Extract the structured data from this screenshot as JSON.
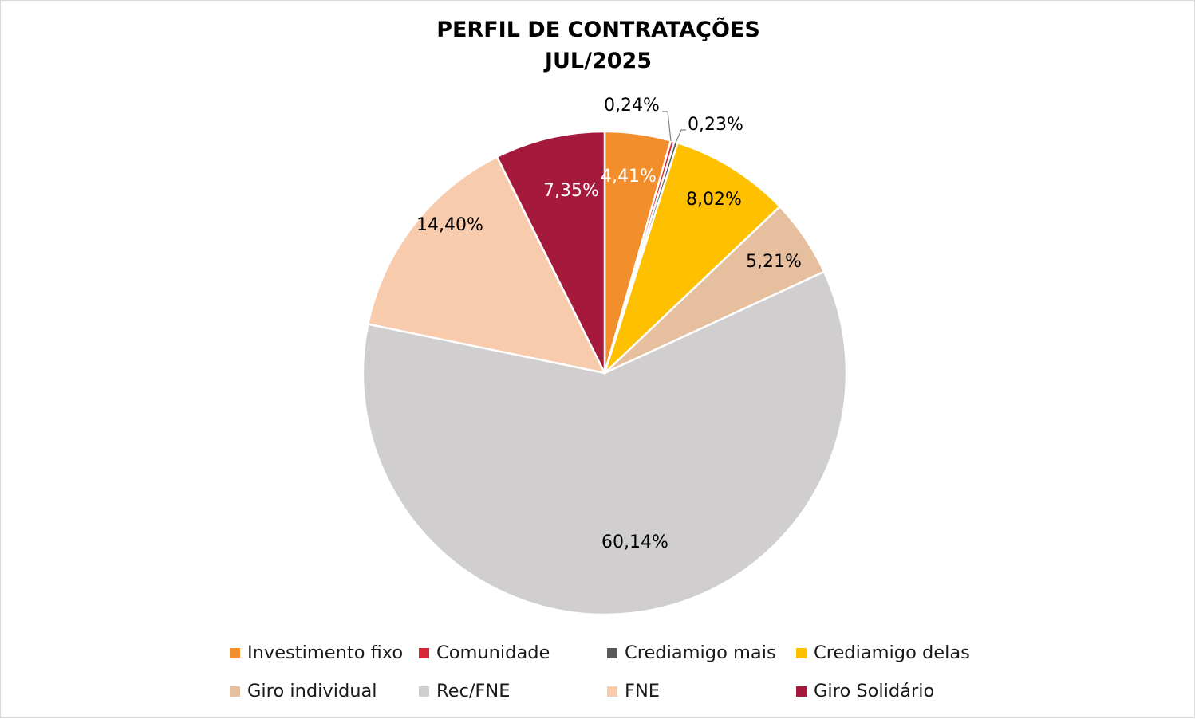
{
  "chart_data": {
    "type": "pie",
    "title": "PERFIL DE CONTRATAÇÕES",
    "subtitle": "JUL/2025",
    "legend_position": "bottom",
    "slices": [
      {
        "label": "Investimento fixo",
        "value": 4.41,
        "display": "4,41%",
        "color": "#F28E2B",
        "label_color": "#ffffff"
      },
      {
        "label": "Comunidade",
        "value": 0.24,
        "display": "0,24%",
        "color": "#D62738",
        "label_color": "#000000"
      },
      {
        "label": "Crediamigo mais",
        "value": 0.23,
        "display": "0,23%",
        "color": "#595959",
        "label_color": "#000000"
      },
      {
        "label": "Crediamigo delas",
        "value": 8.02,
        "display": "8,02%",
        "color": "#FFC000",
        "label_color": "#000000"
      },
      {
        "label": "Giro individual",
        "value": 5.21,
        "display": "5,21%",
        "color": "#E6BF9F",
        "label_color": "#000000"
      },
      {
        "label": "Rec/FNE",
        "value": 60.14,
        "display": "60,14%",
        "color": "#D0CECE",
        "label_color": "#000000"
      },
      {
        "label": "FNE",
        "value": 14.4,
        "display": "14,40%",
        "color": "#F8CBAD",
        "label_color": "#000000"
      },
      {
        "label": "Giro Solidário",
        "value": 7.35,
        "display": "7,35%",
        "color": "#A5193C",
        "label_color": "#ffffff"
      }
    ]
  }
}
